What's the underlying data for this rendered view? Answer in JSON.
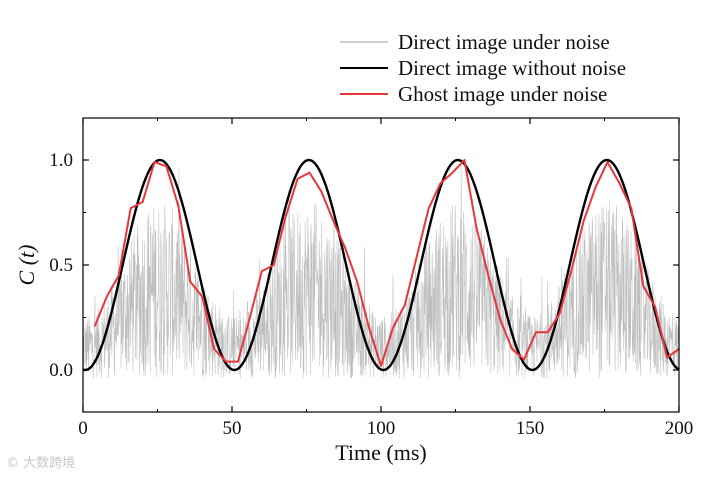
{
  "chart_data": {
    "type": "line",
    "title": "",
    "xlabel": "Time (ms)",
    "ylabel": "C (t)",
    "xlim": [
      0,
      200
    ],
    "ylim": [
      -0.2,
      1.2
    ],
    "xticks": [
      0,
      50,
      100,
      150,
      200
    ],
    "yticks": [
      0.0,
      0.5,
      1.0
    ],
    "ytick_labels": [
      "0.0",
      "0.5",
      "1.0"
    ],
    "grid": false,
    "legend_position": "top-right, above plot",
    "series": [
      {
        "name": "Direct image under noise",
        "color": "#bdbdbd",
        "style": "dense noisy signal around the sinusoid, ranging roughly from -0.05 to 0.95"
      },
      {
        "name": "Direct image without noise",
        "color": "#000000",
        "function": "0.5 - 0.5*cos(2*pi*(t - 0.8)/50)",
        "x": [
          0,
          25,
          50,
          75,
          100,
          125,
          150,
          175,
          200
        ],
        "y": [
          0.02,
          1.0,
          0.0,
          1.0,
          0.0,
          1.0,
          0.0,
          1.0,
          0.02
        ]
      },
      {
        "name": "Ghost image under noise",
        "color": "#e8363a",
        "x": [
          4,
          8,
          12,
          16,
          20,
          24,
          28,
          32,
          36,
          40,
          44,
          48,
          52,
          56,
          60,
          64,
          68,
          72,
          76,
          80,
          84,
          88,
          92,
          96,
          100,
          104,
          108,
          112,
          116,
          120,
          124,
          128,
          132,
          136,
          140,
          144,
          148,
          152,
          156,
          160,
          164,
          168,
          172,
          176,
          180,
          184,
          188,
          192,
          196,
          200
        ],
        "y": [
          0.21,
          0.35,
          0.45,
          0.77,
          0.8,
          0.99,
          0.97,
          0.78,
          0.42,
          0.35,
          0.1,
          0.04,
          0.04,
          0.25,
          0.47,
          0.5,
          0.73,
          0.91,
          0.94,
          0.85,
          0.71,
          0.58,
          0.42,
          0.2,
          0.02,
          0.2,
          0.31,
          0.54,
          0.77,
          0.89,
          0.94,
          1.0,
          0.68,
          0.45,
          0.24,
          0.1,
          0.05,
          0.18,
          0.18,
          0.27,
          0.48,
          0.71,
          0.87,
          0.99,
          0.89,
          0.77,
          0.4,
          0.3,
          0.06,
          0.1
        ]
      }
    ]
  },
  "watermark": "© 大数跨境"
}
